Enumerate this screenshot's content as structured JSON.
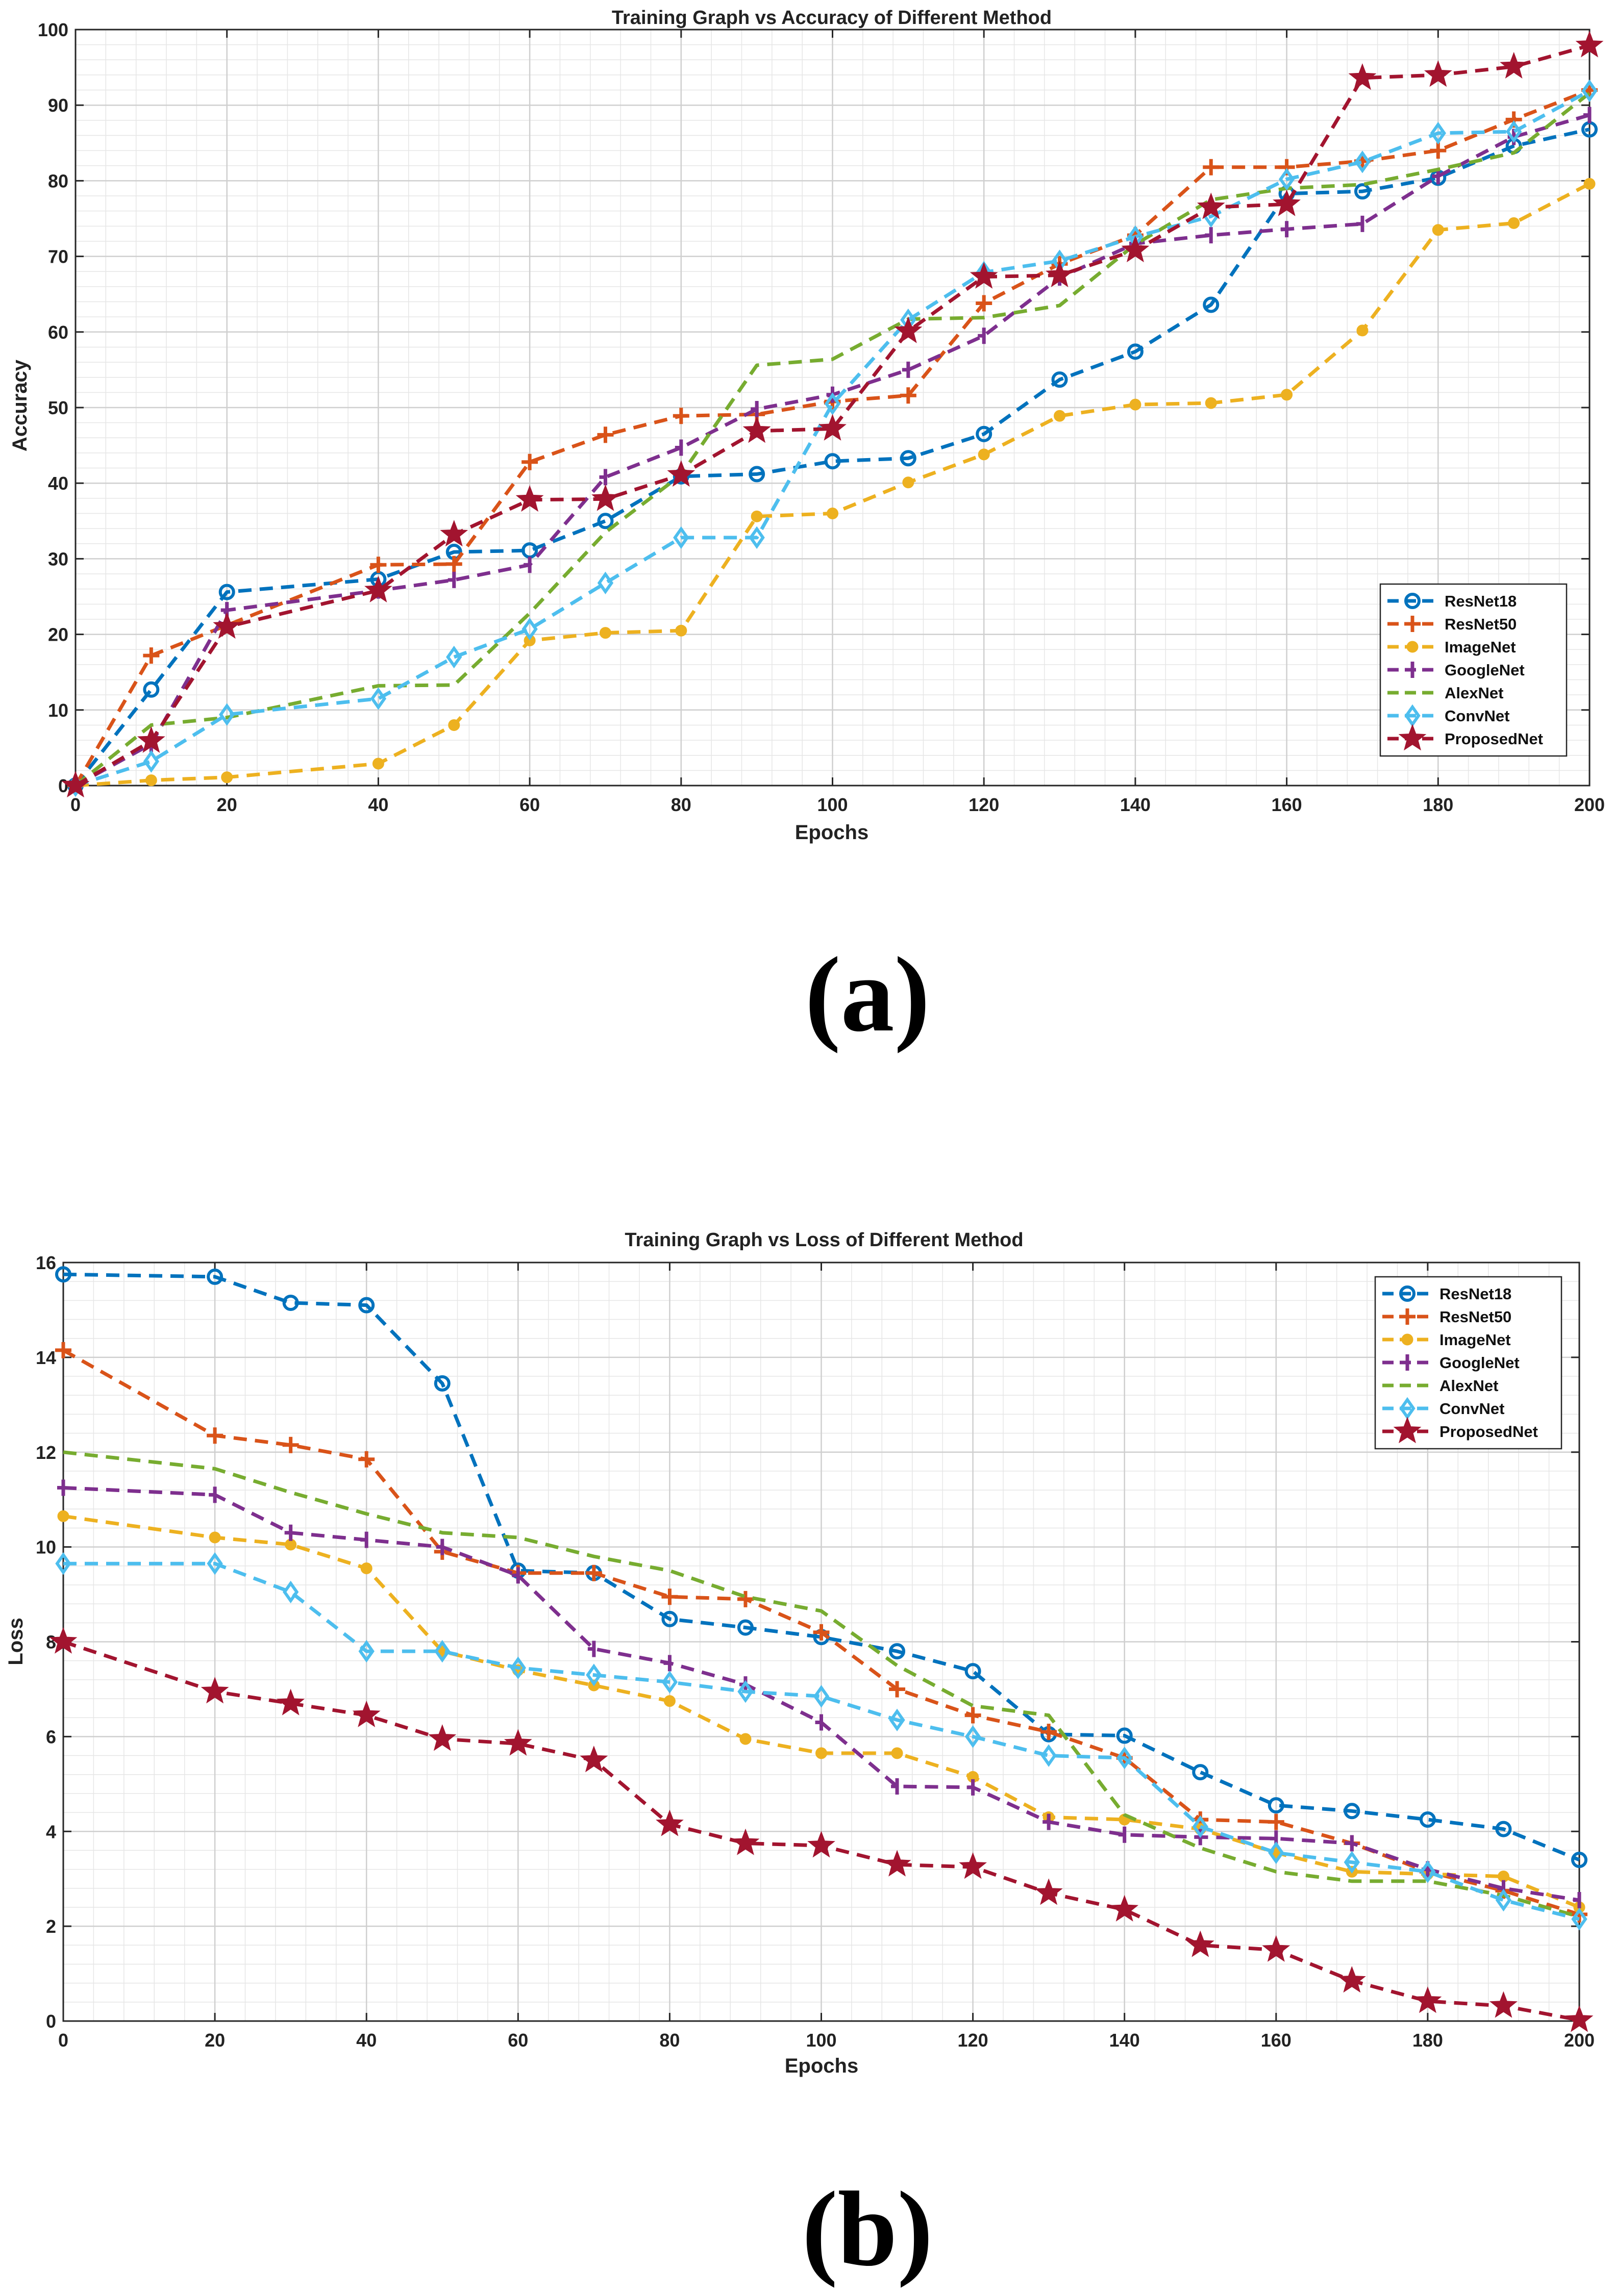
{
  "colors": {
    "ResNet18": "#0072BD",
    "ResNet50": "#D95319",
    "ImageNet": "#EDB120",
    "GoogleNet": "#7E2F8E",
    "AlexNet": "#77AC30",
    "ConvNet": "#4DBEEE",
    "ProposedNet": "#A2142F"
  },
  "markers": {
    "ResNet18": "circle",
    "ResNet50": "plus",
    "ImageNet": "dot",
    "GoogleNet": "tick",
    "AlexNet": "none",
    "ConvNet": "diamond",
    "ProposedNet": "star"
  },
  "panel_labels": [
    "(a)",
    "(b)"
  ],
  "chart_data": [
    {
      "type": "line",
      "title": "Training Graph vs Accuracy of Different Method",
      "xlabel": "Epochs",
      "ylabel": "Accuracy",
      "xlim": [
        0,
        200
      ],
      "ylim": [
        0,
        100
      ],
      "xticks": [
        0,
        20,
        40,
        60,
        80,
        100,
        120,
        140,
        160,
        180,
        200
      ],
      "yticks": [
        0,
        10,
        20,
        30,
        40,
        50,
        60,
        70,
        80,
        90,
        100
      ],
      "grid": true,
      "legend_position": "bottom-right",
      "series": [
        {
          "name": "ResNet18",
          "x": [
            0,
            10,
            20,
            40,
            50,
            60,
            70,
            80,
            90,
            100,
            110,
            120,
            130,
            140,
            150,
            160,
            170,
            180,
            190,
            200
          ],
          "y": [
            0,
            12.7,
            25.6,
            27.3,
            30.9,
            31.1,
            35.0,
            40.9,
            41.2,
            42.9,
            43.3,
            46.5,
            53.7,
            57.4,
            63.6,
            78.3,
            78.6,
            80.4,
            84.6,
            86.8
          ]
        },
        {
          "name": "ResNet50",
          "x": [
            0,
            10,
            20,
            40,
            50,
            60,
            70,
            80,
            90,
            100,
            110,
            120,
            130,
            140,
            150,
            160,
            170,
            180,
            190,
            200
          ],
          "y": [
            0,
            17.2,
            21.2,
            29.2,
            29.3,
            42.8,
            46.4,
            48.9,
            49.1,
            50.8,
            51.6,
            63.8,
            69.0,
            72.8,
            81.8,
            81.8,
            82.6,
            84.0,
            88.1,
            92.0
          ]
        },
        {
          "name": "ImageNet",
          "x": [
            0,
            10,
            20,
            40,
            50,
            60,
            70,
            80,
            90,
            100,
            110,
            120,
            130,
            140,
            150,
            160,
            170,
            180,
            190,
            200
          ],
          "y": [
            0,
            0.7,
            1.1,
            2.9,
            8.0,
            19.2,
            20.2,
            20.5,
            35.6,
            36.0,
            40.1,
            43.8,
            48.9,
            50.4,
            50.6,
            51.7,
            60.2,
            73.5,
            74.4,
            79.6
          ]
        },
        {
          "name": "GoogleNet",
          "x": [
            0,
            10,
            20,
            40,
            50,
            60,
            70,
            80,
            90,
            100,
            110,
            120,
            130,
            140,
            150,
            160,
            170,
            180,
            190,
            200
          ],
          "y": [
            0,
            5.5,
            23.2,
            25.8,
            27.2,
            29.2,
            40.8,
            44.7,
            49.8,
            51.7,
            55.0,
            59.5,
            67.2,
            71.7,
            72.8,
            73.6,
            74.3,
            80.6,
            85.8,
            88.7
          ]
        },
        {
          "name": "AlexNet",
          "x": [
            0,
            10,
            20,
            40,
            50,
            60,
            70,
            80,
            90,
            100,
            110,
            120,
            130,
            140,
            150,
            160,
            170,
            180,
            190,
            200
          ],
          "y": [
            0,
            8.0,
            9.0,
            13.2,
            13.3,
            22.8,
            33.5,
            41.1,
            55.6,
            56.4,
            61.7,
            61.9,
            63.5,
            71.6,
            77.5,
            79.0,
            79.5,
            81.5,
            83.7,
            91.6
          ]
        },
        {
          "name": "ConvNet",
          "x": [
            0,
            10,
            20,
            40,
            50,
            60,
            70,
            80,
            90,
            100,
            110,
            120,
            130,
            140,
            150,
            160,
            170,
            180,
            190,
            200
          ],
          "y": [
            0,
            3.2,
            9.4,
            11.5,
            17.0,
            20.7,
            26.8,
            32.8,
            32.8,
            50.5,
            61.6,
            67.9,
            69.4,
            72.6,
            75.3,
            80.2,
            82.5,
            86.3,
            86.5,
            91.9
          ]
        },
        {
          "name": "ProposedNet",
          "x": [
            0,
            10,
            20,
            40,
            50,
            60,
            70,
            80,
            90,
            100,
            110,
            120,
            130,
            140,
            150,
            160,
            170,
            180,
            190,
            200
          ],
          "y": [
            0,
            5.9,
            21.0,
            25.8,
            33.2,
            37.8,
            37.9,
            41.1,
            46.9,
            47.2,
            60.1,
            67.3,
            67.5,
            70.8,
            76.5,
            76.9,
            93.6,
            94.0,
            95.1,
            97.9
          ]
        }
      ]
    },
    {
      "type": "line",
      "title": "Training Graph vs Loss of Different Method",
      "xlabel": "Epochs",
      "ylabel": "Loss",
      "xlim": [
        0,
        200
      ],
      "ylim": [
        0,
        16
      ],
      "xticks": [
        0,
        20,
        40,
        60,
        80,
        100,
        120,
        140,
        160,
        180,
        200
      ],
      "yticks": [
        0,
        2,
        4,
        6,
        8,
        10,
        12,
        14,
        16
      ],
      "grid": true,
      "legend_position": "top-right",
      "series": [
        {
          "name": "ResNet18",
          "x": [
            0,
            20,
            30,
            40,
            50,
            60,
            70,
            80,
            90,
            100,
            110,
            120,
            130,
            140,
            150,
            160,
            170,
            180,
            190,
            200
          ],
          "y": [
            15.75,
            15.7,
            15.15,
            15.1,
            13.45,
            9.5,
            9.45,
            8.48,
            8.3,
            8.1,
            7.8,
            7.38,
            6.05,
            6.02,
            5.25,
            4.55,
            4.43,
            4.25,
            4.05,
            3.4
          ]
        },
        {
          "name": "ResNet50",
          "x": [
            0,
            20,
            30,
            40,
            50,
            60,
            70,
            80,
            90,
            100,
            110,
            120,
            130,
            140,
            150,
            160,
            170,
            180,
            190,
            200
          ],
          "y": [
            14.15,
            12.35,
            12.15,
            11.85,
            9.9,
            9.45,
            9.45,
            8.95,
            8.9,
            8.2,
            7.0,
            6.45,
            6.1,
            5.55,
            4.25,
            4.2,
            3.75,
            3.15,
            2.75,
            2.25
          ]
        },
        {
          "name": "ImageNet",
          "x": [
            0,
            20,
            30,
            40,
            50,
            60,
            70,
            80,
            90,
            100,
            110,
            120,
            130,
            140,
            150,
            160,
            170,
            180,
            190,
            200
          ],
          "y": [
            10.65,
            10.2,
            10.05,
            9.55,
            7.8,
            7.4,
            7.08,
            6.75,
            5.95,
            5.65,
            5.65,
            5.15,
            4.3,
            4.25,
            4.05,
            3.55,
            3.15,
            3.1,
            3.05,
            2.4
          ]
        },
        {
          "name": "GoogleNet",
          "x": [
            0,
            20,
            30,
            40,
            50,
            60,
            70,
            80,
            90,
            100,
            110,
            120,
            130,
            140,
            150,
            160,
            170,
            180,
            190,
            200
          ],
          "y": [
            11.25,
            11.1,
            10.3,
            10.15,
            10.0,
            9.4,
            7.85,
            7.55,
            7.1,
            6.3,
            4.95,
            4.93,
            4.2,
            3.93,
            3.88,
            3.85,
            3.75,
            3.2,
            2.8,
            2.55
          ]
        },
        {
          "name": "AlexNet",
          "x": [
            0,
            20,
            30,
            40,
            50,
            60,
            70,
            80,
            90,
            100,
            110,
            120,
            130,
            140,
            150,
            160,
            170,
            180,
            190,
            200
          ],
          "y": [
            12.0,
            11.65,
            11.15,
            10.7,
            10.3,
            10.2,
            9.8,
            9.5,
            8.95,
            8.65,
            7.5,
            6.65,
            6.45,
            4.35,
            3.65,
            3.15,
            2.95,
            2.95,
            2.65,
            2.2
          ]
        },
        {
          "name": "ConvNet",
          "x": [
            0,
            20,
            30,
            40,
            50,
            60,
            70,
            80,
            90,
            100,
            110,
            120,
            130,
            140,
            150,
            160,
            170,
            180,
            190,
            200
          ],
          "y": [
            9.65,
            9.65,
            9.05,
            7.8,
            7.8,
            7.45,
            7.3,
            7.15,
            6.95,
            6.85,
            6.35,
            6.0,
            5.6,
            5.55,
            4.1,
            3.55,
            3.35,
            3.15,
            2.55,
            2.15
          ]
        },
        {
          "name": "ProposedNet",
          "x": [
            0,
            20,
            30,
            40,
            50,
            60,
            70,
            80,
            90,
            100,
            110,
            120,
            130,
            140,
            150,
            160,
            170,
            180,
            190,
            200
          ],
          "y": [
            8.0,
            6.95,
            6.7,
            6.45,
            5.95,
            5.85,
            5.5,
            4.15,
            3.75,
            3.7,
            3.3,
            3.25,
            2.7,
            2.35,
            1.6,
            1.5,
            0.85,
            0.42,
            0.32,
            0.02
          ]
        }
      ]
    }
  ]
}
